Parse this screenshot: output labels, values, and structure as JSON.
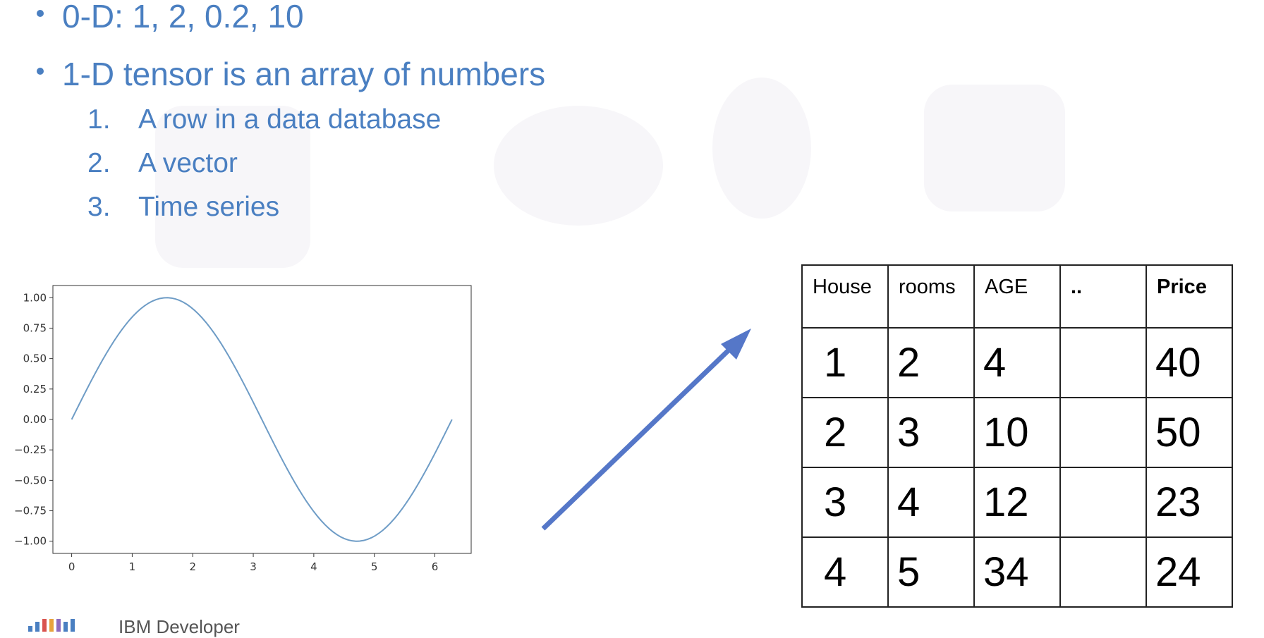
{
  "bullets": [
    {
      "text": "0-D: 1, 2, 0.2, 10"
    },
    {
      "text": "1-D tensor is an array of numbers"
    }
  ],
  "subitems": [
    {
      "num": "1.",
      "text": "A row in a data database"
    },
    {
      "num": "2.",
      "text": "A vector"
    },
    {
      "num": "3.",
      "text": "Time series"
    }
  ],
  "table": {
    "headers": [
      "House",
      "rooms",
      "AGE",
      "..",
      "Price"
    ],
    "rows": [
      [
        "1",
        "2",
        "4",
        "",
        "40"
      ],
      [
        "2",
        "3",
        "10",
        "",
        "50"
      ],
      [
        "3",
        "4",
        "12",
        "",
        "23"
      ],
      [
        "4",
        "5",
        "34",
        "",
        "24"
      ]
    ]
  },
  "footer": {
    "text": "IBM Developer"
  },
  "colors": {
    "accent": "#4a7fc1",
    "line": "#6e9cc6",
    "arrow": "#5577c8"
  },
  "chart_data": {
    "type": "line",
    "series": [
      {
        "function": "sin(x)",
        "x_range": [
          0,
          6.283
        ],
        "samples": 100
      }
    ],
    "xticks": [
      "0",
      "1",
      "2",
      "3",
      "4",
      "5",
      "6"
    ],
    "xtick_values": [
      0,
      1,
      2,
      3,
      4,
      5,
      6
    ],
    "yticks": [
      "1.00",
      "0.75",
      "0.50",
      "0.25",
      "0.00",
      "−0.25",
      "−0.50",
      "−0.75",
      "−1.00"
    ],
    "ytick_values": [
      1.0,
      0.75,
      0.5,
      0.25,
      0.0,
      -0.25,
      -0.5,
      -0.75,
      -1.0
    ],
    "xlim": [
      -0.31,
      6.6
    ],
    "ylim": [
      -1.1,
      1.1
    ],
    "grid": false
  }
}
